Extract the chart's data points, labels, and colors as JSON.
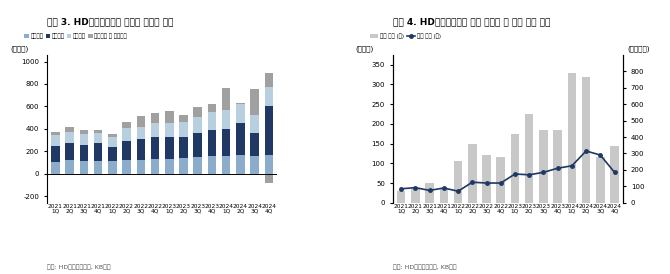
{
  "chart1": {
    "title": "그림 3. HD현대일렉트릭 부문별 매출액 추이",
    "ylabel": "(십억원)",
    "source": "자료: HD현대일렉트릭, KB증권",
    "categories": [
      "2021 1Q",
      "2021 2Q",
      "2021 3Q",
      "2021 4Q",
      "2022 1Q",
      "2022 2Q",
      "2022 3Q",
      "2022 4Q",
      "2023 1Q",
      "2023 2Q",
      "2023 3Q",
      "2023 4Q",
      "2024 1Q",
      "2024 2Q",
      "2024 3Q",
      "2024 4Q"
    ],
    "배전기기": [
      105,
      120,
      110,
      115,
      110,
      120,
      125,
      130,
      130,
      135,
      150,
      160,
      160,
      170,
      155,
      170
    ],
    "전력기기": [
      140,
      150,
      145,
      155,
      130,
      175,
      180,
      195,
      195,
      195,
      210,
      225,
      240,
      280,
      210,
      430
    ],
    "회전기기": [
      100,
      100,
      100,
      90,
      90,
      110,
      110,
      125,
      130,
      130,
      145,
      165,
      165,
      170,
      160,
      170
    ],
    "종속법인및연결조정": [
      30,
      50,
      35,
      30,
      25,
      55,
      100,
      95,
      100,
      65,
      85,
      75,
      195,
      10,
      230,
      130
    ],
    "종속법인음수": [
      0,
      0,
      0,
      0,
      0,
      0,
      0,
      0,
      0,
      0,
      0,
      0,
      0,
      0,
      0,
      -80
    ],
    "colors": {
      "배전기기": "#8caccc",
      "전력기기": "#1f3864",
      "회전기기": "#b8cfe0",
      "종속법인및연결조정": "#a0a0a0"
    },
    "ylim": [
      -260,
      1060
    ],
    "yticks": [
      -200,
      0,
      200,
      400,
      600,
      800,
      1000
    ]
  },
  "chart2": {
    "title": "그림 4. HD현대일렉트릭 북미 매출액 및 신규 수주 추이",
    "ylabel_left": "(십억원)",
    "ylabel_right": "(백만달러)",
    "source": "자료: HD현대일렉트릭, KB증권",
    "categories": [
      "2021 1Q",
      "2021 2Q",
      "2021 3Q",
      "2021 4Q",
      "2022 1Q",
      "2022 2Q",
      "2022 3Q",
      "2022 4Q",
      "2023 1Q",
      "2023 2Q",
      "2023 3Q",
      "2023 4Q",
      "2024 1Q",
      "2024 2Q",
      "2024 3Q",
      "2024 4Q"
    ],
    "북미수주_bars": [
      30,
      35,
      50,
      35,
      105,
      150,
      120,
      115,
      175,
      225,
      185,
      185,
      330,
      320,
      115,
      145
    ],
    "북미매출_line": [
      85,
      92,
      75,
      90,
      70,
      125,
      120,
      120,
      175,
      170,
      185,
      210,
      225,
      315,
      290,
      185
    ],
    "bar_color": "#c8c8c8",
    "line_color": "#1f3864",
    "ylim_left": [
      0,
      375
    ],
    "ylim_right": [
      0,
      900
    ],
    "yticks_left": [
      0,
      50,
      100,
      150,
      200,
      250,
      300,
      350
    ],
    "yticks_right": [
      0,
      100,
      200,
      300,
      400,
      500,
      600,
      700,
      800
    ],
    "legend_bar": "북미 수주 (우)",
    "legend_line": "북미 매출 (좌)",
    "right_label": "(백만달러)"
  }
}
